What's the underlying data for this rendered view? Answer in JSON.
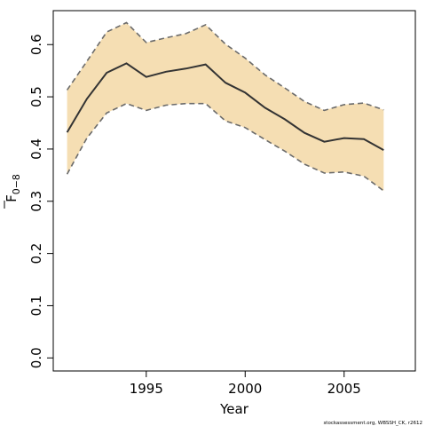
{
  "chart_data": {
    "type": "line",
    "xlabel": "Year",
    "ylabel": "F",
    "ylabel_subscript": "0−8",
    "xlim": [
      1990.3,
      2008.6
    ],
    "ylim": [
      -0.025,
      0.665
    ],
    "x_ticks": [
      1995,
      2000,
      2005
    ],
    "y_ticks": [
      0.0,
      0.1,
      0.2,
      0.3,
      0.4,
      0.5,
      0.6
    ],
    "y_tick_labels": [
      "0.0",
      "0.1",
      "0.2",
      "0.3",
      "0.4",
      "0.5",
      "0.6"
    ],
    "x": [
      1991,
      1992,
      1993,
      1994,
      1995,
      1996,
      1997,
      1998,
      1999,
      2000,
      2001,
      2002,
      2003,
      2004,
      2005,
      2006,
      2007
    ],
    "series": [
      {
        "role": "estimate",
        "values": [
          0.432,
          0.496,
          0.546,
          0.564,
          0.538,
          0.548,
          0.554,
          0.562,
          0.527,
          0.508,
          0.479,
          0.457,
          0.431,
          0.414,
          0.421,
          0.419,
          0.398
        ]
      },
      {
        "role": "upper_bound",
        "values": [
          0.513,
          0.568,
          0.624,
          0.642,
          0.604,
          0.613,
          0.621,
          0.638,
          0.601,
          0.574,
          0.542,
          0.517,
          0.491,
          0.474,
          0.485,
          0.488,
          0.475
        ]
      },
      {
        "role": "lower_bound",
        "values": [
          0.352,
          0.421,
          0.469,
          0.487,
          0.474,
          0.484,
          0.487,
          0.487,
          0.454,
          0.441,
          0.418,
          0.396,
          0.371,
          0.354,
          0.356,
          0.348,
          0.32
        ]
      }
    ],
    "grid": false,
    "legend": "none",
    "colors": {
      "band": "#f5deb3",
      "line": "#333333",
      "bound": "#6b6b6b",
      "frame": "#000000"
    }
  },
  "credit": "stockassessment.org, WBSSH_CK, r2612"
}
